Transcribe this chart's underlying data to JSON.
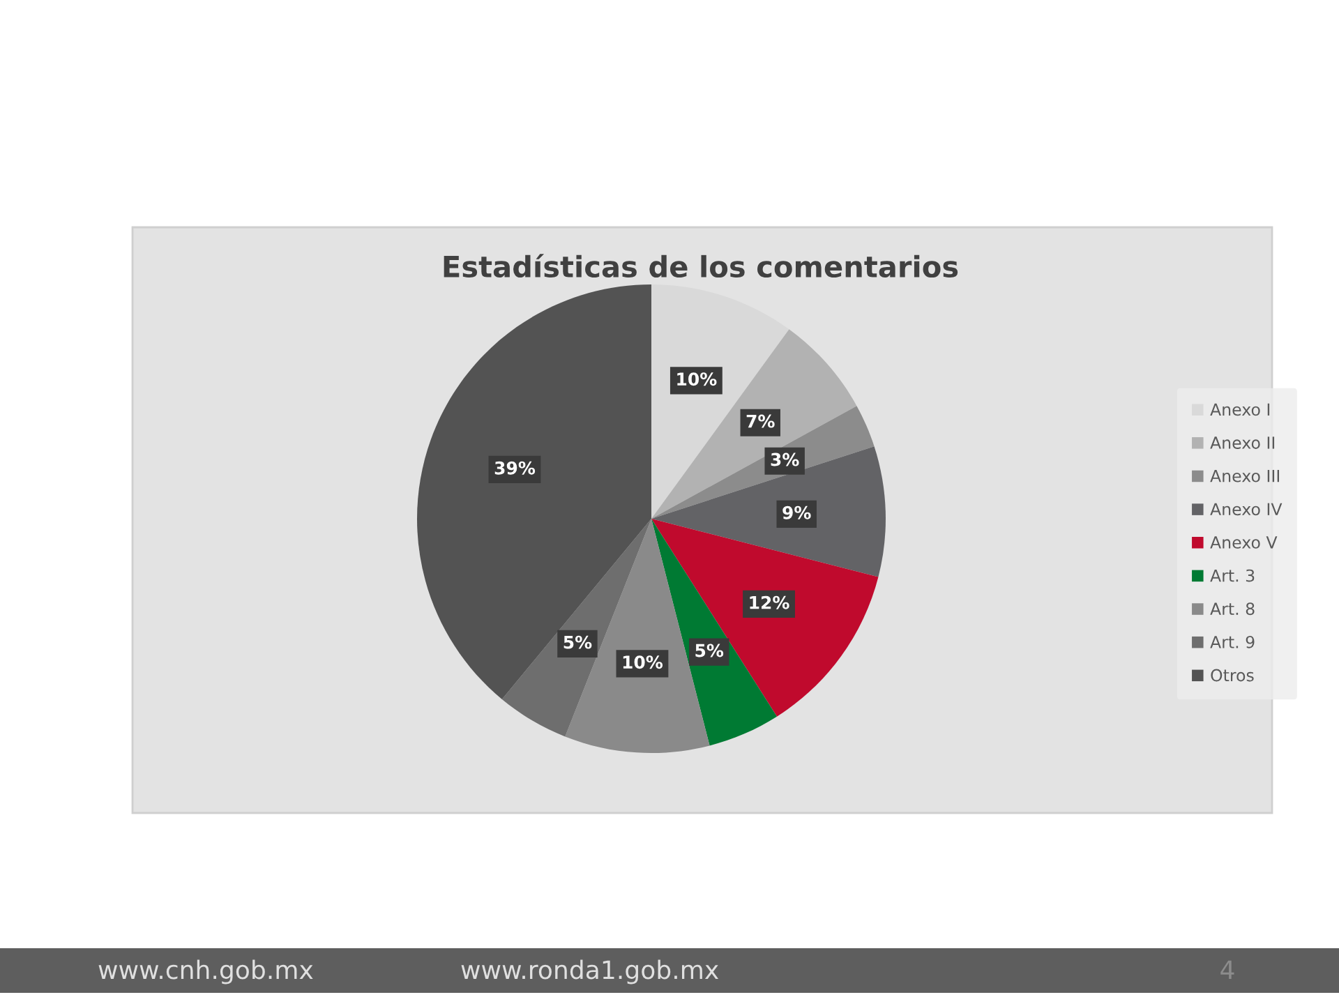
{
  "chart_data": {
    "type": "pie",
    "title": "Estadísticas de los comentarios",
    "categories": [
      "Anexo I",
      "Anexo II",
      "Anexo III",
      "Anexo IV",
      "Anexo V",
      "Art. 3",
      "Art. 8",
      "Art. 9",
      "Otros"
    ],
    "values": [
      10,
      7,
      3,
      9,
      12,
      5,
      10,
      5,
      39
    ],
    "colors": [
      "#d9d9d9",
      "#b2b2b2",
      "#8c8c8c",
      "#636366",
      "#c00a2d",
      "#007a33",
      "#8a8a8a",
      "#6e6e6e",
      "#535353"
    ],
    "value_labels": [
      "10%",
      "7%",
      "3%",
      "9%",
      "12%",
      "5%",
      "10%",
      "5%",
      "39%"
    ],
    "legend": "right",
    "annotations": [
      "www.cnh.gob.mx",
      "www.ronda1.gob.mx",
      "4"
    ]
  }
}
